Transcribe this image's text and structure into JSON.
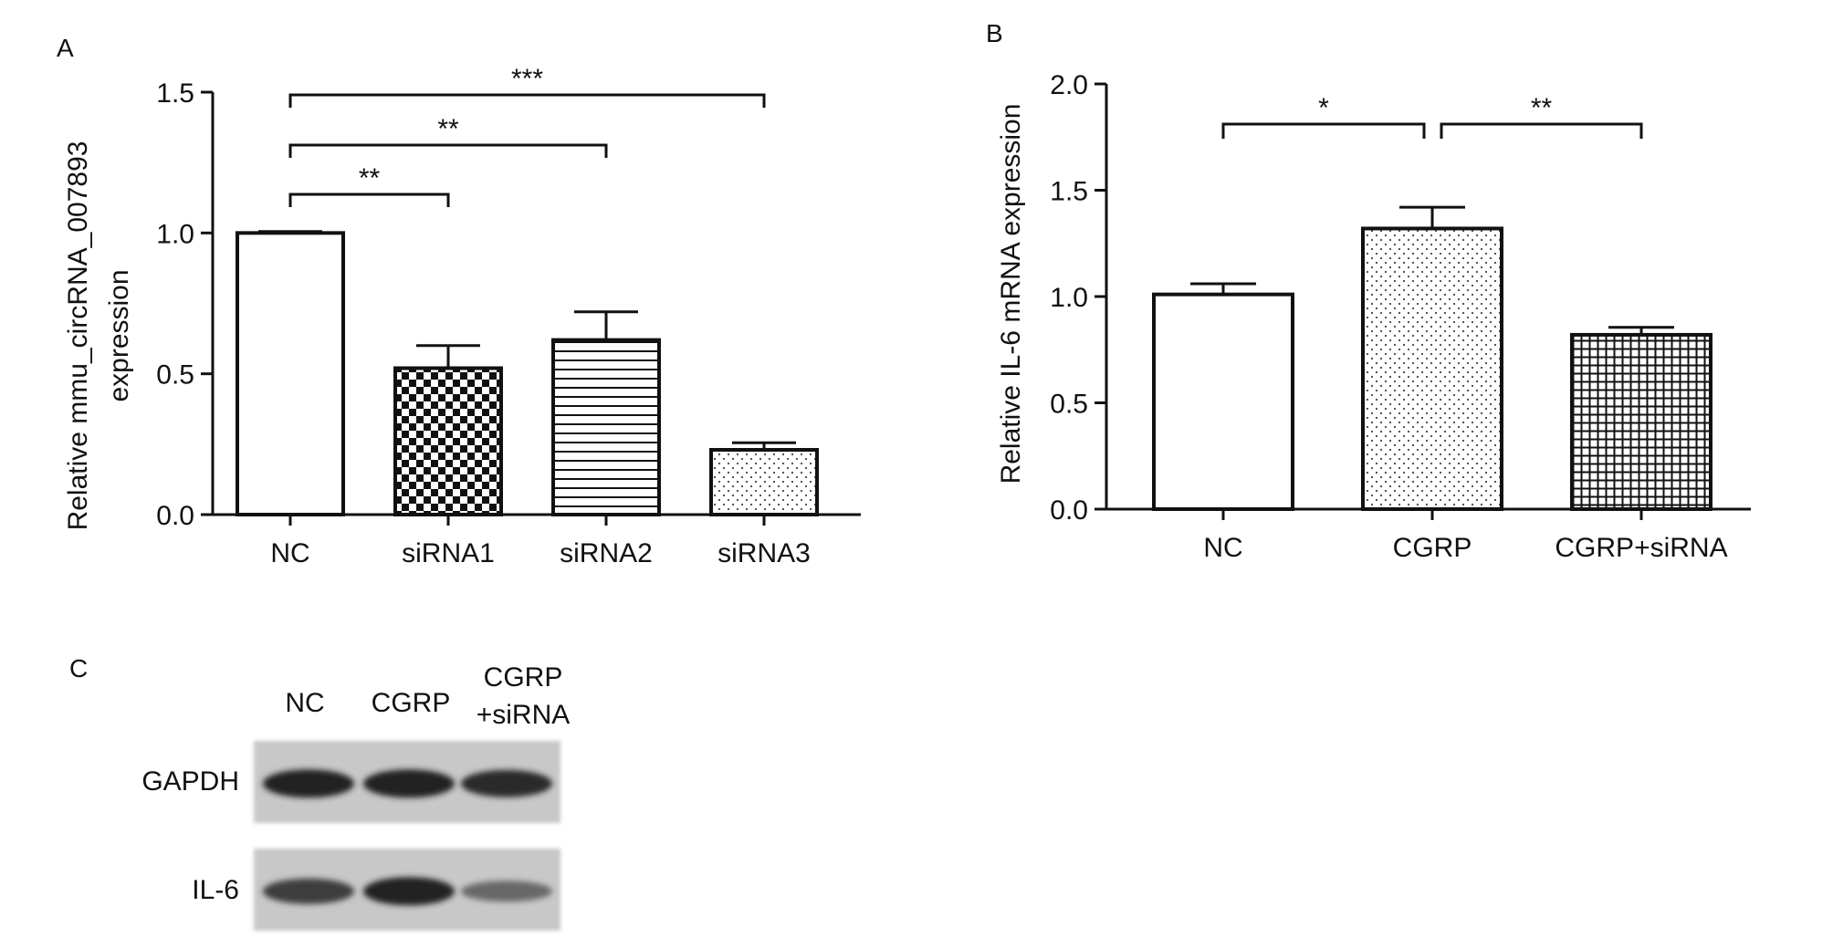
{
  "panels": {
    "a": "A",
    "b": "B",
    "c": "C"
  },
  "chart_data": [
    {
      "type": "bar",
      "panel": "A",
      "title": "",
      "ylabel_line1": "Relative mmu_circRNA_007893",
      "ylabel_line2": "expression",
      "xlabel": "",
      "categories": [
        "NC",
        "siRNA1",
        "siRNA2",
        "siRNA3"
      ],
      "values": [
        1.0,
        0.52,
        0.62,
        0.23
      ],
      "errors": [
        0.005,
        0.08,
        0.1,
        0.025
      ],
      "fill_patterns": [
        "none",
        "checkerboard",
        "horizontal-lines",
        "dots"
      ],
      "ylim": [
        0,
        1.5
      ],
      "yticks": [
        0.0,
        0.5,
        1.0,
        1.5
      ],
      "ytick_labels": [
        "0.0",
        "0.5",
        "1.0",
        "1.5"
      ],
      "grid": false,
      "significance": [
        {
          "from": "NC",
          "to": "siRNA1",
          "label": "**"
        },
        {
          "from": "NC",
          "to": "siRNA2",
          "label": "**"
        },
        {
          "from": "NC",
          "to": "siRNA3",
          "label": "***"
        }
      ]
    },
    {
      "type": "bar",
      "panel": "B",
      "title": "",
      "ylabel": "Relative IL-6 mRNA expression",
      "xlabel": "",
      "categories": [
        "NC",
        "CGRP",
        "CGRP+siRNA"
      ],
      "values": [
        1.01,
        1.32,
        0.82
      ],
      "errors": [
        0.05,
        0.1,
        0.035
      ],
      "fill_patterns": [
        "none",
        "dots",
        "grid"
      ],
      "ylim": [
        0,
        2.0
      ],
      "yticks": [
        0.0,
        0.5,
        1.0,
        1.5,
        2.0
      ],
      "ytick_labels": [
        "0.0",
        "0.5",
        "1.0",
        "1.5",
        "2.0"
      ],
      "grid": false,
      "significance": [
        {
          "from": "NC",
          "to": "CGRP",
          "label": "*"
        },
        {
          "from": "CGRP",
          "to": "CGRP+siRNA",
          "label": "**"
        }
      ]
    }
  ],
  "western_blot": {
    "panel": "C",
    "lanes": [
      {
        "line1": "NC",
        "line2": ""
      },
      {
        "line1": "CGRP",
        "line2": ""
      },
      {
        "line1": "CGRP",
        "line2": "+siRNA"
      }
    ],
    "rows": [
      {
        "label": "GAPDH",
        "intensities": [
          0.95,
          0.95,
          0.9
        ]
      },
      {
        "label": "IL-6",
        "intensities": [
          0.8,
          0.95,
          0.55
        ]
      }
    ]
  }
}
